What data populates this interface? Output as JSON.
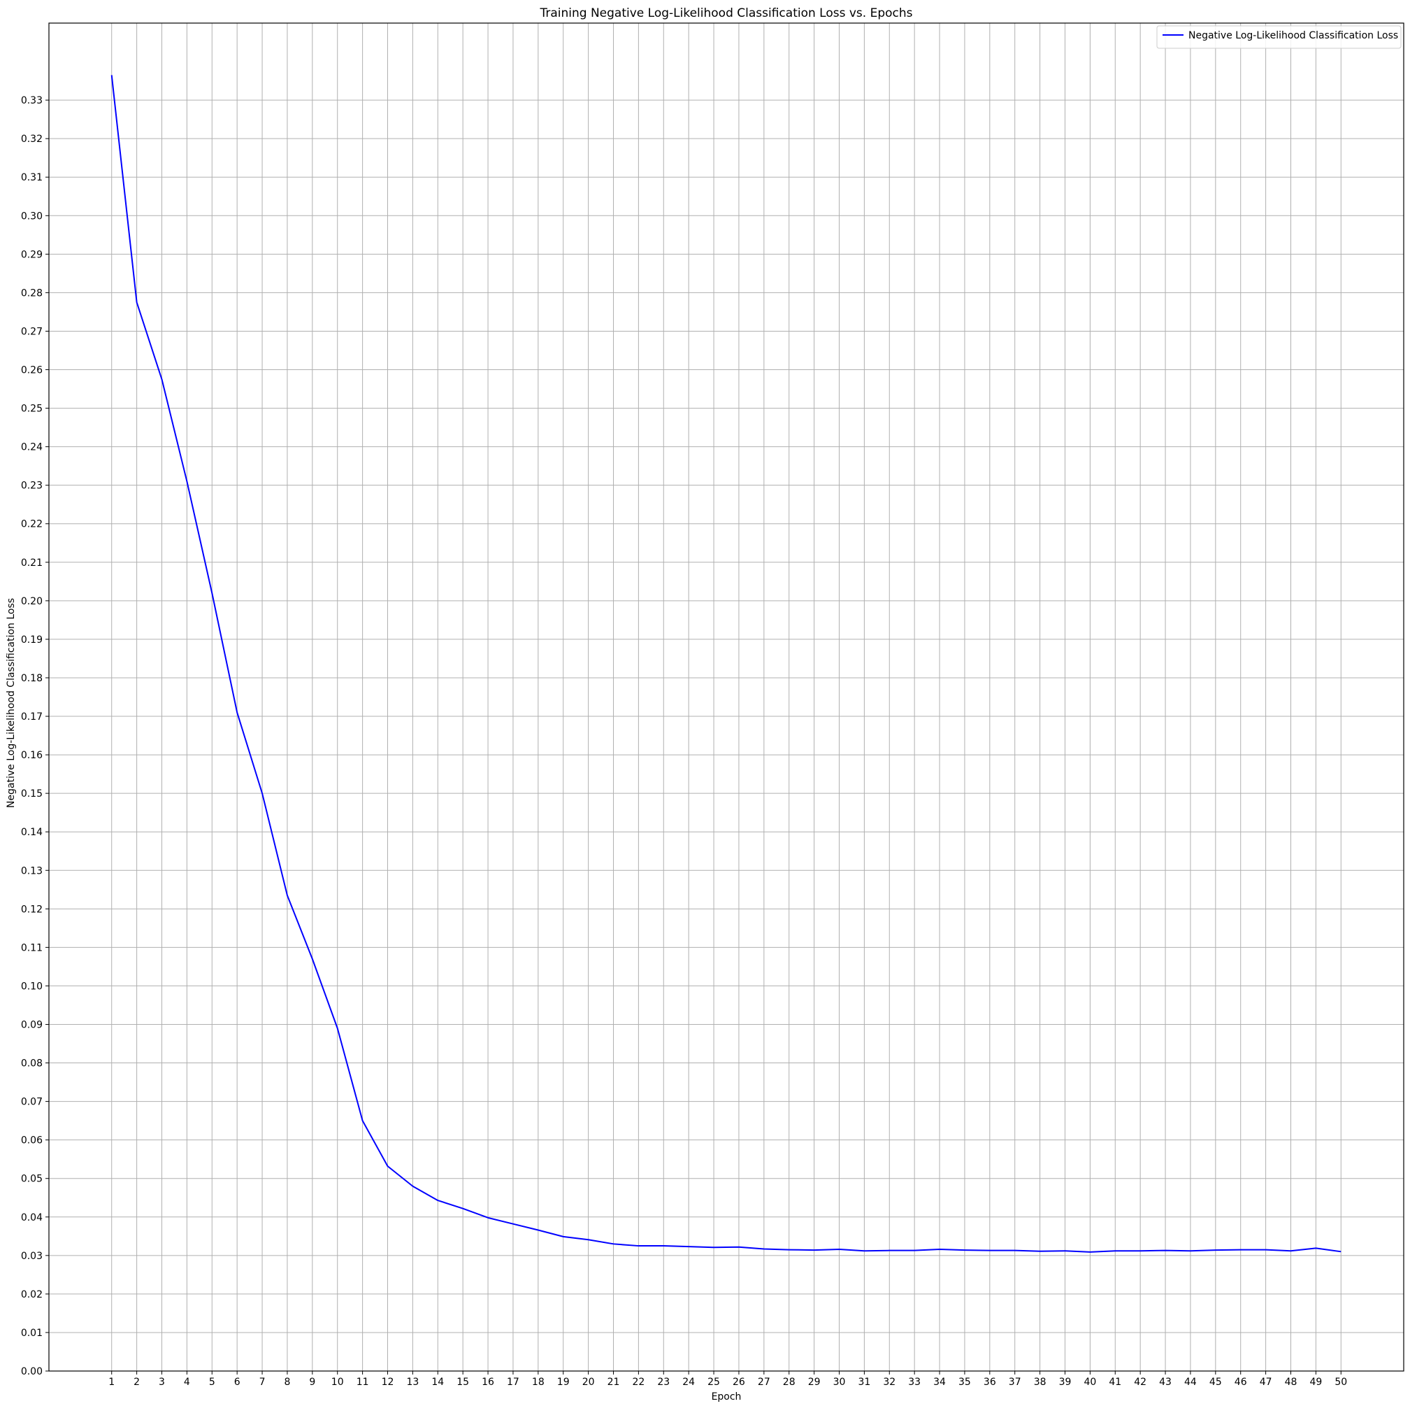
{
  "chart_data": {
    "type": "line",
    "title": "Training Negative Log-Likelihood Classification Loss vs. Epochs",
    "xlabel": "Epoch",
    "ylabel": "Negative Log-Likelihood Classification Loss",
    "xlim": [
      -1.5,
      52.5
    ],
    "ylim": [
      0.0,
      0.35
    ],
    "grid": true,
    "legend_position": "top-right",
    "x": [
      1,
      2,
      3,
      4,
      5,
      6,
      7,
      8,
      9,
      10,
      11,
      12,
      13,
      14,
      15,
      16,
      17,
      18,
      19,
      20,
      21,
      22,
      23,
      24,
      25,
      26,
      27,
      28,
      29,
      30,
      31,
      32,
      33,
      34,
      35,
      36,
      37,
      38,
      39,
      40,
      41,
      42,
      43,
      44,
      45,
      46,
      47,
      48,
      49,
      50
    ],
    "x_ticks": [
      "1",
      "2",
      "3",
      "4",
      "5",
      "6",
      "7",
      "8",
      "9",
      "10",
      "11",
      "12",
      "13",
      "14",
      "15",
      "16",
      "17",
      "18",
      "19",
      "20",
      "21",
      "22",
      "23",
      "24",
      "25",
      "26",
      "27",
      "28",
      "29",
      "30",
      "31",
      "32",
      "33",
      "34",
      "35",
      "36",
      "37",
      "38",
      "39",
      "40",
      "41",
      "42",
      "43",
      "44",
      "45",
      "46",
      "47",
      "48",
      "49",
      "50"
    ],
    "y_ticks": [
      "0.00",
      "0.01",
      "0.02",
      "0.03",
      "0.04",
      "0.05",
      "0.06",
      "0.07",
      "0.08",
      "0.09",
      "0.10",
      "0.11",
      "0.12",
      "0.13",
      "0.14",
      "0.15",
      "0.16",
      "0.17",
      "0.18",
      "0.19",
      "0.20",
      "0.21",
      "0.22",
      "0.23",
      "0.24",
      "0.25",
      "0.26",
      "0.27",
      "0.28",
      "0.29",
      "0.30",
      "0.31",
      "0.32",
      "0.33"
    ],
    "series": [
      {
        "name": "Negative Log-Likelihood Classification Loss",
        "color": "#0000ff",
        "values": [
          0.3365,
          0.2775,
          0.2575,
          0.231,
          0.202,
          0.171,
          0.15,
          0.1235,
          0.107,
          0.089,
          0.065,
          0.0532,
          0.048,
          0.0443,
          0.0422,
          0.0398,
          0.0382,
          0.0366,
          0.0349,
          0.0341,
          0.033,
          0.0325,
          0.0325,
          0.0323,
          0.0321,
          0.0322,
          0.0317,
          0.0315,
          0.0314,
          0.0316,
          0.0312,
          0.0313,
          0.0313,
          0.0316,
          0.0314,
          0.0313,
          0.0313,
          0.0311,
          0.0312,
          0.0309,
          0.0312,
          0.0312,
          0.0313,
          0.0312,
          0.0314,
          0.0315,
          0.0315,
          0.0312,
          0.0319,
          0.031
        ]
      }
    ]
  }
}
